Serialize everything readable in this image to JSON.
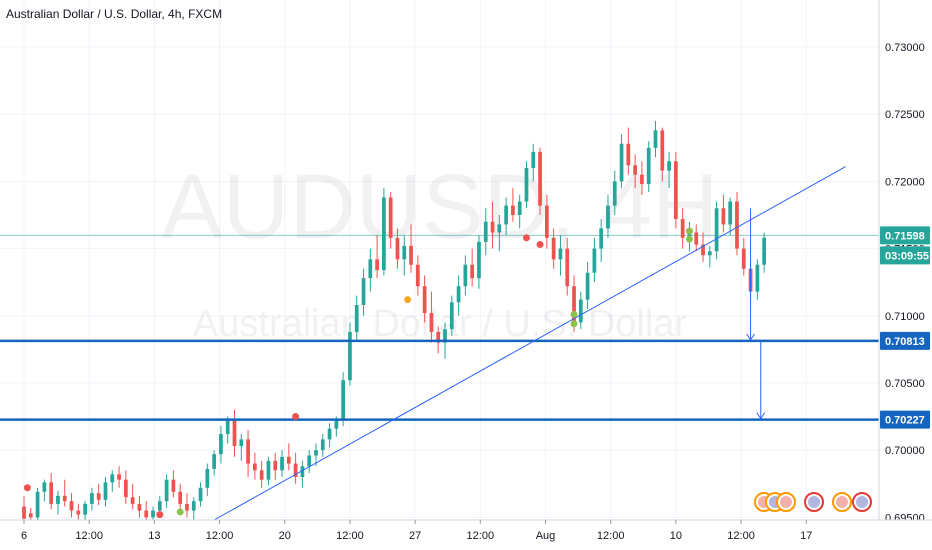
{
  "header": {
    "title": "Australian Dollar / U.S. Dollar, 4h, FXCM"
  },
  "watermark": {
    "symbol": "AUDUSD, 4H",
    "name": "Australian Dollar / U.S. Dollar"
  },
  "price_axis": {
    "ticks": [
      "0.73000",
      "0.72500",
      "0.72000",
      "0.71500",
      "0.71000",
      "0.70500",
      "0.70000",
      "0.69500"
    ]
  },
  "time_axis": {
    "ticks": [
      "6",
      "12:00",
      "13",
      "12:00",
      "20",
      "12:00",
      "27",
      "12:00",
      "Aug",
      "12:00",
      "10",
      "12:00",
      "17"
    ]
  },
  "tags": {
    "last_price": "0.71598",
    "countdown": "03:09:55",
    "level_1": "0.70813",
    "level_2": "0.70227"
  },
  "colors": {
    "up": "#26a69a",
    "down": "#ef5350",
    "level_line": "#1565c0",
    "trendline": "#2962ff",
    "last_price_line": "#26a69a"
  },
  "chart_data": {
    "type": "candlestick",
    "title": "Australian Dollar / U.S. Dollar, 4h, FXCM",
    "ylim": [
      0.6948,
      0.7335
    ],
    "x_range": [
      0,
      124
    ],
    "tick_positions": [
      0,
      9.6,
      19.2,
      28.8,
      38.4,
      48,
      57.6,
      67.2,
      76.8,
      86.4,
      96,
      105.6,
      115.2
    ],
    "last_price": 0.71598,
    "horizontal_levels": [
      0.70813,
      0.70227
    ],
    "trendline": {
      "from": [
        28,
        0.6948
      ],
      "to": [
        121,
        0.7211
      ]
    },
    "projection_arrows": [
      {
        "x": 107,
        "from": 0.718,
        "to": 0.70813
      },
      {
        "x": 108.5,
        "from": 0.70813,
        "to": 0.70227
      }
    ],
    "markers": [
      {
        "x": 0.5,
        "y": 0.6972,
        "color": "#ef5350"
      },
      {
        "x": 20,
        "y": 0.6952,
        "color": "#ef5350"
      },
      {
        "x": 23,
        "y": 0.6954,
        "color": "#8bc34a"
      },
      {
        "x": 40,
        "y": 0.7025,
        "color": "#ef5350"
      },
      {
        "x": 56.5,
        "y": 0.7112,
        "color": "#f9a825"
      },
      {
        "x": 74,
        "y": 0.7158,
        "color": "#ef5350"
      },
      {
        "x": 76,
        "y": 0.7153,
        "color": "#ef5350"
      },
      {
        "x": 81,
        "y": 0.7101,
        "color": "#8bc34a"
      },
      {
        "x": 81,
        "y": 0.7094,
        "color": "#8bc34a"
      },
      {
        "x": 98,
        "y": 0.7163,
        "color": "#8bc34a"
      },
      {
        "x": 98,
        "y": 0.7157,
        "color": "#8bc34a"
      }
    ],
    "candles": [
      [
        0.6958,
        0.6966,
        0.6948,
        0.6949
      ],
      [
        0.6953,
        0.6957,
        0.6948,
        0.695
      ],
      [
        0.695,
        0.6972,
        0.6948,
        0.6969
      ],
      [
        0.6969,
        0.6978,
        0.6962,
        0.6976
      ],
      [
        0.6976,
        0.6983,
        0.6956,
        0.696
      ],
      [
        0.696,
        0.697,
        0.6952,
        0.6966
      ],
      [
        0.6966,
        0.6978,
        0.6958,
        0.6962
      ],
      [
        0.6962,
        0.6968,
        0.695,
        0.6955
      ],
      [
        0.6955,
        0.696,
        0.6948,
        0.6952
      ],
      [
        0.6952,
        0.6962,
        0.6948,
        0.696
      ],
      [
        0.696,
        0.6972,
        0.6955,
        0.6968
      ],
      [
        0.6968,
        0.6975,
        0.6959,
        0.6963
      ],
      [
        0.6963,
        0.698,
        0.6958,
        0.6976
      ],
      [
        0.6976,
        0.6985,
        0.6969,
        0.6982
      ],
      [
        0.6982,
        0.6988,
        0.6972,
        0.6978
      ],
      [
        0.6978,
        0.6985,
        0.696,
        0.6965
      ],
      [
        0.6965,
        0.6975,
        0.6956,
        0.696
      ],
      [
        0.696,
        0.6966,
        0.695,
        0.6955
      ],
      [
        0.6955,
        0.6962,
        0.6948,
        0.695
      ],
      [
        0.695,
        0.6958,
        0.6948,
        0.6955
      ],
      [
        0.6955,
        0.6966,
        0.695,
        0.6962
      ],
      [
        0.6962,
        0.6982,
        0.6957,
        0.6978
      ],
      [
        0.6978,
        0.6985,
        0.6965,
        0.6969
      ],
      [
        0.6969,
        0.6975,
        0.6955,
        0.696
      ],
      [
        0.696,
        0.6968,
        0.695,
        0.6955
      ],
      [
        0.6955,
        0.6965,
        0.6948,
        0.6962
      ],
      [
        0.6962,
        0.6976,
        0.6958,
        0.6972
      ],
      [
        0.6972,
        0.699,
        0.6966,
        0.6986
      ],
      [
        0.6986,
        0.7,
        0.6981,
        0.6997
      ],
      [
        0.6997,
        0.7018,
        0.699,
        0.7012
      ],
      [
        0.7012,
        0.7025,
        0.7005,
        0.7022
      ],
      [
        0.7022,
        0.703,
        0.6995,
        0.7003
      ],
      [
        0.7003,
        0.7012,
        0.6992,
        0.7008
      ],
      [
        0.7008,
        0.7015,
        0.698,
        0.699
      ],
      [
        0.699,
        0.6998,
        0.6978,
        0.6985
      ],
      [
        0.6985,
        0.6992,
        0.6972,
        0.6978
      ],
      [
        0.6978,
        0.6995,
        0.6974,
        0.6992
      ],
      [
        0.6992,
        0.6998,
        0.6978,
        0.6985
      ],
      [
        0.6985,
        0.7,
        0.698,
        0.6995
      ],
      [
        0.6995,
        0.7005,
        0.6985,
        0.699
      ],
      [
        0.699,
        0.6998,
        0.6975,
        0.698
      ],
      [
        0.698,
        0.6992,
        0.6972,
        0.6988
      ],
      [
        0.6988,
        0.7,
        0.6983,
        0.6996
      ],
      [
        0.6996,
        0.7005,
        0.6988,
        0.7
      ],
      [
        0.7,
        0.7012,
        0.6995,
        0.7008
      ],
      [
        0.7008,
        0.702,
        0.7002,
        0.7016
      ],
      [
        0.7016,
        0.7025,
        0.701,
        0.7022
      ],
      [
        0.7022,
        0.7058,
        0.7018,
        0.7052
      ],
      [
        0.7052,
        0.7095,
        0.7048,
        0.7088
      ],
      [
        0.7088,
        0.7115,
        0.7082,
        0.7108
      ],
      [
        0.7108,
        0.7135,
        0.71,
        0.7128
      ],
      [
        0.7128,
        0.715,
        0.7118,
        0.7142
      ],
      [
        0.7142,
        0.716,
        0.7128,
        0.7134
      ],
      [
        0.7134,
        0.7195,
        0.713,
        0.7188
      ],
      [
        0.7188,
        0.7192,
        0.715,
        0.7158
      ],
      [
        0.7158,
        0.7165,
        0.7135,
        0.7142
      ],
      [
        0.7142,
        0.716,
        0.713,
        0.7152
      ],
      [
        0.7152,
        0.7168,
        0.7132,
        0.7138
      ],
      [
        0.7138,
        0.7145,
        0.7115,
        0.7122
      ],
      [
        0.7122,
        0.713,
        0.7095,
        0.7102
      ],
      [
        0.7102,
        0.7118,
        0.708,
        0.7088
      ],
      [
        0.7088,
        0.7092,
        0.7072,
        0.708
      ],
      [
        0.708,
        0.7095,
        0.7068,
        0.709
      ],
      [
        0.709,
        0.7115,
        0.7085,
        0.711
      ],
      [
        0.711,
        0.713,
        0.71,
        0.7122
      ],
      [
        0.7122,
        0.7145,
        0.7115,
        0.7138
      ],
      [
        0.7138,
        0.715,
        0.7122,
        0.7128
      ],
      [
        0.7128,
        0.716,
        0.712,
        0.7155
      ],
      [
        0.7155,
        0.718,
        0.7145,
        0.717
      ],
      [
        0.717,
        0.7185,
        0.715,
        0.7162
      ],
      [
        0.7162,
        0.7175,
        0.7148,
        0.7168
      ],
      [
        0.7168,
        0.7188,
        0.716,
        0.7182
      ],
      [
        0.7182,
        0.7195,
        0.717,
        0.7175
      ],
      [
        0.7175,
        0.719,
        0.7165,
        0.7185
      ],
      [
        0.7185,
        0.7215,
        0.718,
        0.721
      ],
      [
        0.721,
        0.7228,
        0.72,
        0.7222
      ],
      [
        0.7222,
        0.7225,
        0.7175,
        0.7182
      ],
      [
        0.7182,
        0.719,
        0.715,
        0.7158
      ],
      [
        0.7158,
        0.7165,
        0.7135,
        0.7142
      ],
      [
        0.7142,
        0.716,
        0.713,
        0.715
      ],
      [
        0.715,
        0.7158,
        0.7115,
        0.7122
      ],
      [
        0.7122,
        0.713,
        0.7088,
        0.7095
      ],
      [
        0.7095,
        0.7118,
        0.709,
        0.7112
      ],
      [
        0.7112,
        0.714,
        0.7105,
        0.7132
      ],
      [
        0.7132,
        0.7158,
        0.7125,
        0.715
      ],
      [
        0.715,
        0.7172,
        0.714,
        0.7165
      ],
      [
        0.7165,
        0.719,
        0.7158,
        0.7182
      ],
      [
        0.7182,
        0.7208,
        0.7175,
        0.72
      ],
      [
        0.72,
        0.7235,
        0.7195,
        0.7228
      ],
      [
        0.7228,
        0.724,
        0.7205,
        0.7212
      ],
      [
        0.7212,
        0.722,
        0.7195,
        0.7205
      ],
      [
        0.7205,
        0.7215,
        0.719,
        0.7198
      ],
      [
        0.7198,
        0.723,
        0.7192,
        0.7225
      ],
      [
        0.7225,
        0.7245,
        0.7218,
        0.7238
      ],
      [
        0.7238,
        0.724,
        0.72,
        0.7208
      ],
      [
        0.7208,
        0.7222,
        0.7195,
        0.7215
      ],
      [
        0.7215,
        0.7222,
        0.7165,
        0.7172
      ],
      [
        0.7172,
        0.718,
        0.715,
        0.7158
      ],
      [
        0.7158,
        0.717,
        0.7148,
        0.7162
      ],
      [
        0.7162,
        0.7168,
        0.7148,
        0.7153
      ],
      [
        0.7153,
        0.7162,
        0.714,
        0.7145
      ],
      [
        0.7145,
        0.7152,
        0.7136,
        0.7148
      ],
      [
        0.7148,
        0.7185,
        0.7142,
        0.718
      ],
      [
        0.718,
        0.719,
        0.7162,
        0.7168
      ],
      [
        0.7168,
        0.7188,
        0.716,
        0.7185
      ],
      [
        0.7185,
        0.7192,
        0.7145,
        0.715
      ],
      [
        0.715,
        0.7158,
        0.713,
        0.7135
      ],
      [
        0.7135,
        0.714,
        0.711,
        0.7118
      ],
      [
        0.7118,
        0.7142,
        0.7112,
        0.7138
      ],
      [
        0.7138,
        0.7162,
        0.7132,
        0.7158
      ]
    ]
  }
}
